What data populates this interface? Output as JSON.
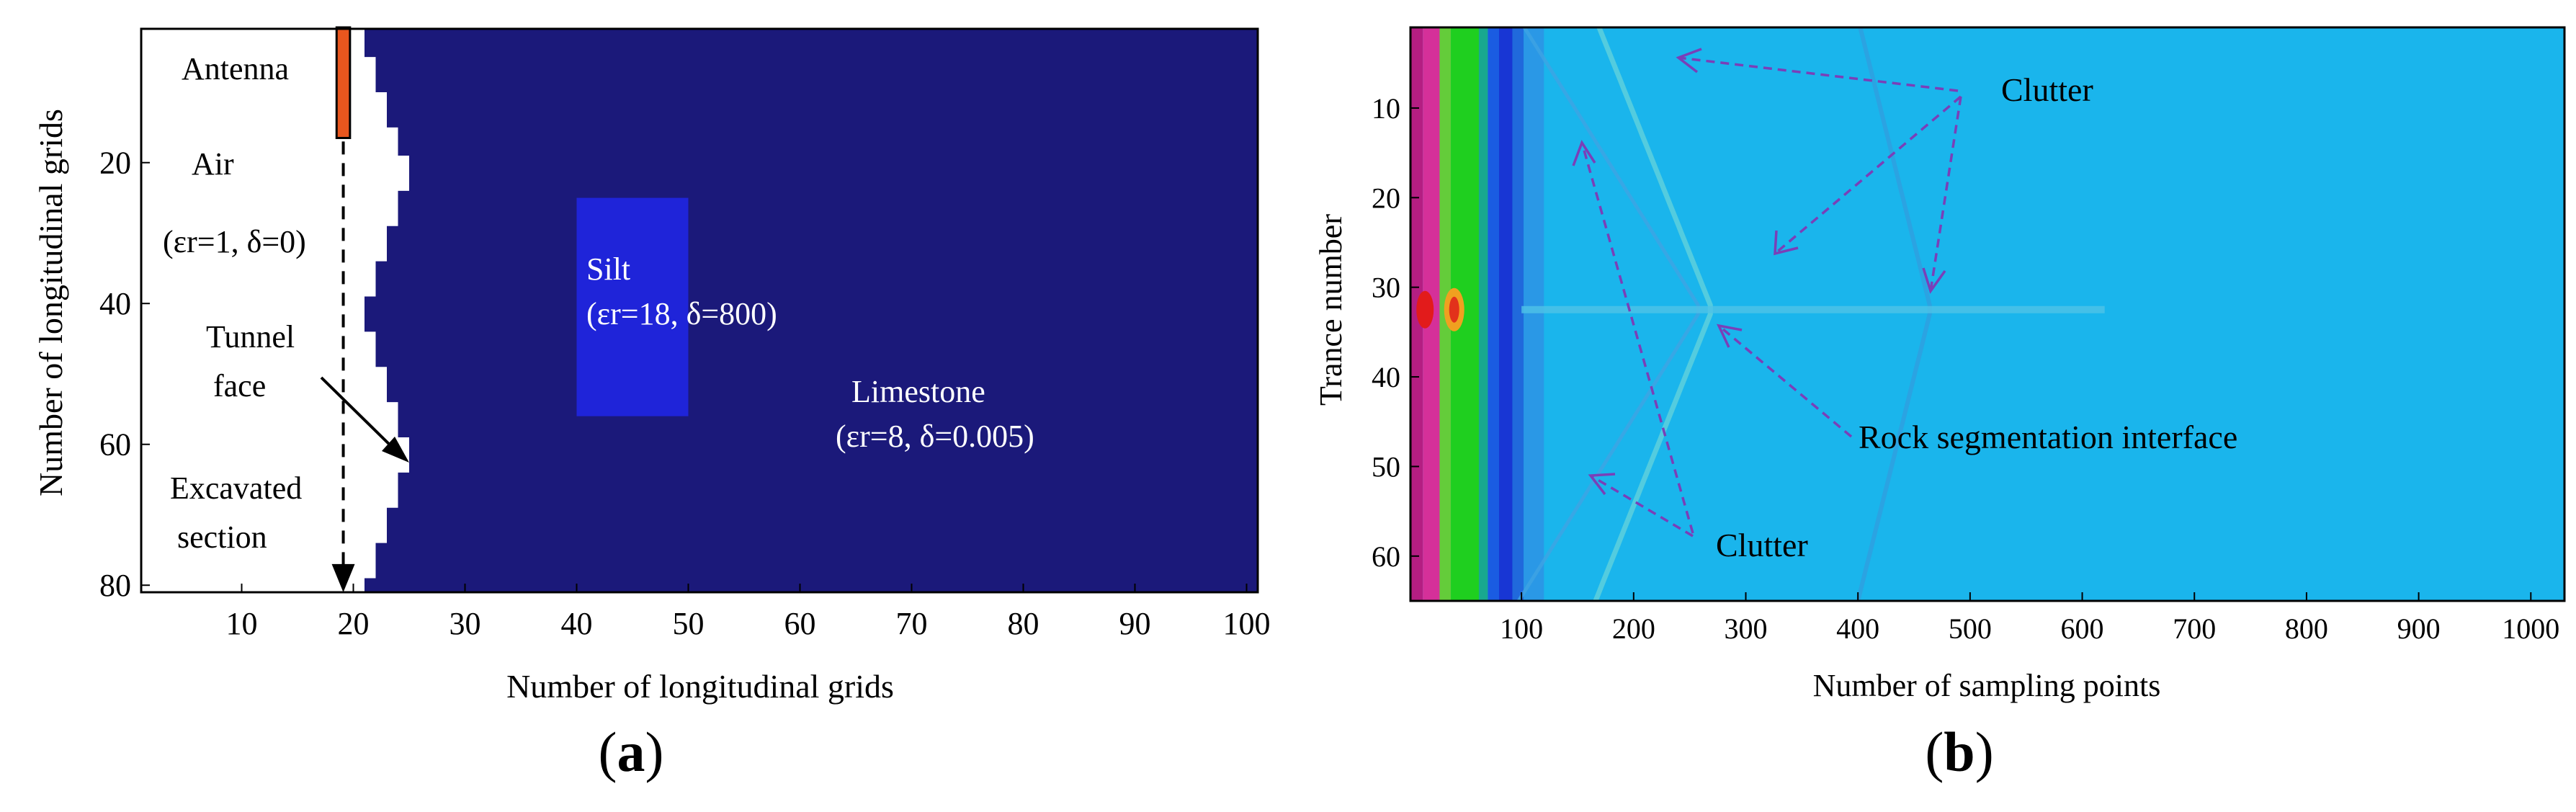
{
  "figure": {
    "panel_a_label": "a",
    "panel_b_label": "b"
  },
  "chart_data": [
    {
      "type": "heatmap",
      "panel": "a",
      "xlabel": "Number of longitudinal grids",
      "ylabel": "Number of longitudinal grids",
      "xlim": [
        1,
        101
      ],
      "ylim": [
        1,
        81
      ],
      "y_inverted": true,
      "xticks": [
        10,
        20,
        30,
        40,
        50,
        60,
        70,
        80,
        90,
        100
      ],
      "yticks": [
        20,
        40,
        60,
        80
      ],
      "colors": {
        "limestone": "#1b197a",
        "silt": "#1f24d9",
        "air": "#ffffff",
        "antenna": "#e8561e"
      },
      "regions": [
        {
          "name": "Limestone",
          "params": "(εr=8, δ=0.005)",
          "label_at": [
            68,
            61
          ]
        },
        {
          "name": "Silt",
          "params": "(εr=18, δ=800)",
          "x": [
            40,
            50
          ],
          "y": [
            25,
            56
          ],
          "label_at": [
            41,
            39
          ]
        },
        {
          "name": "Air",
          "params": "(εr=1, δ=0)"
        }
      ],
      "tunnel_face_x": [
        21,
        22,
        22,
        23,
        23,
        24,
        24,
        25,
        25,
        24,
        24,
        23,
        23,
        22,
        22,
        21,
        21,
        22,
        22,
        23,
        23,
        24,
        24,
        25,
        25,
        24,
        24,
        23,
        23,
        22,
        22,
        21
      ],
      "tunnel_face_y": [
        1,
        5,
        7,
        10,
        12,
        15,
        17,
        19,
        22,
        24,
        27,
        29,
        32,
        34,
        37,
        39,
        42,
        44,
        47,
        49,
        52,
        54,
        57,
        59,
        62,
        64,
        67,
        69,
        72,
        74,
        77,
        79
      ],
      "antenna": {
        "x": [
          18.5,
          19.7
        ],
        "y": [
          0.8,
          16.5
        ]
      },
      "annotations": [
        "Antenna",
        "Air",
        "(εr=1, δ=0)",
        "Tunnel",
        "face",
        "Excavated",
        "section"
      ]
    },
    {
      "type": "heatmap",
      "panel": "b",
      "xlabel": "Number of sampling points",
      "ylabel": "Trance number",
      "xlim": [
        1,
        1030
      ],
      "ylim": [
        1,
        65
      ],
      "y_inverted": true,
      "xticks": [
        100,
        200,
        300,
        400,
        500,
        600,
        700,
        800,
        900,
        1000
      ],
      "yticks": [
        10,
        20,
        30,
        40,
        50,
        60
      ],
      "colors": {
        "background": "#1ab5ec"
      },
      "bands": [
        {
          "x": [
            1,
            12
          ],
          "color": "#b41e82"
        },
        {
          "x": [
            12,
            27
          ],
          "color": "#d53099"
        },
        {
          "x": [
            27,
            37
          ],
          "color": "#64cc3a"
        },
        {
          "x": [
            37,
            62
          ],
          "color": "#1fcf1f"
        },
        {
          "x": [
            62,
            70
          ],
          "color": "#18a88f"
        },
        {
          "x": [
            70,
            80
          ],
          "color": "#1a5ce2"
        },
        {
          "x": [
            80,
            92
          ],
          "color": "#1836d4"
        },
        {
          "x": [
            92,
            102
          ],
          "color": "#2069dc"
        },
        {
          "x": [
            102,
            120
          ],
          "color": "#2a98e6"
        }
      ],
      "annotations": {
        "clutter_top": "Clutter",
        "clutter_bottom": "Clutter",
        "interface": "Rock segmentation interface"
      }
    }
  ]
}
